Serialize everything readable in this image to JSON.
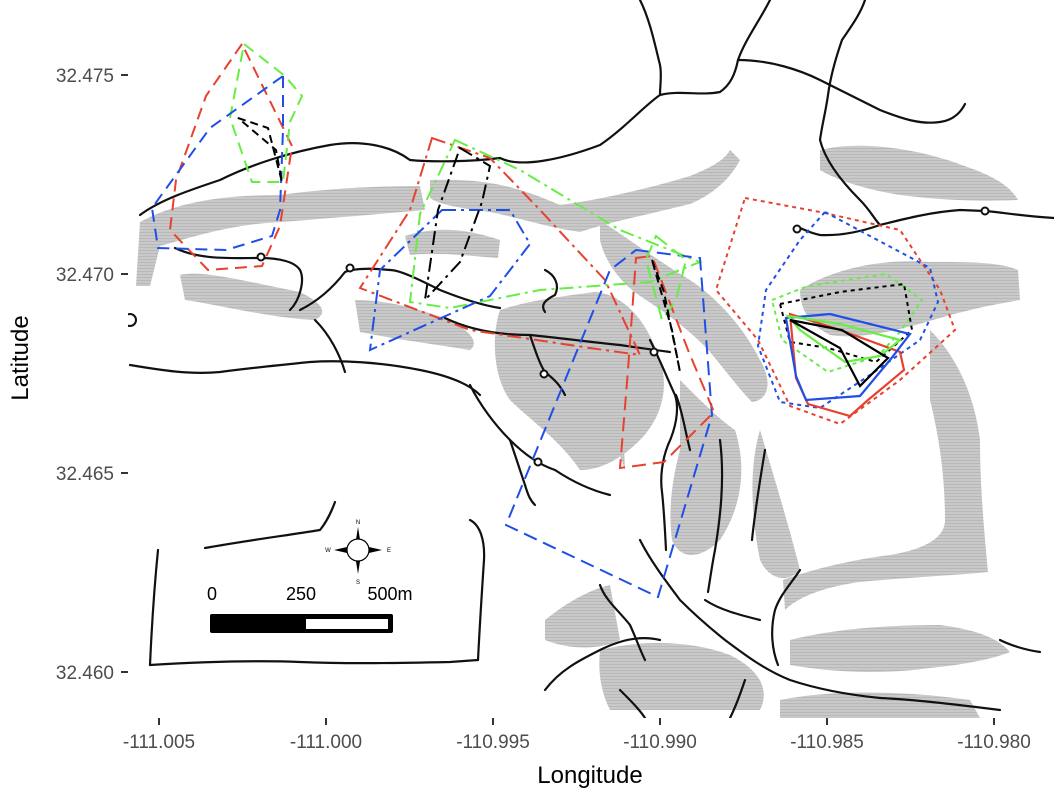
{
  "map": {
    "x_axis_title": "Longitude",
    "y_axis_title": "Latitude",
    "x_ticks": [
      "-111.005",
      "-111.000",
      "-110.995",
      "-110.990",
      "-110.985",
      "-110.980"
    ],
    "y_ticks": [
      "32.475",
      "32.470",
      "32.465",
      "32.460"
    ],
    "scale_bar": {
      "labels": [
        "0",
        "250",
        "500m"
      ]
    },
    "compass": {
      "north": "N",
      "south": "S",
      "east": "E",
      "west": "W"
    },
    "colors": {
      "terrain": "#c8c8c8",
      "roads": "#111111",
      "red": "#e8412f",
      "green": "#66ee44",
      "blue": "#1f4fe6",
      "black": "#000000",
      "axis_text": "#4d4d4d"
    },
    "legend": "none"
  }
}
